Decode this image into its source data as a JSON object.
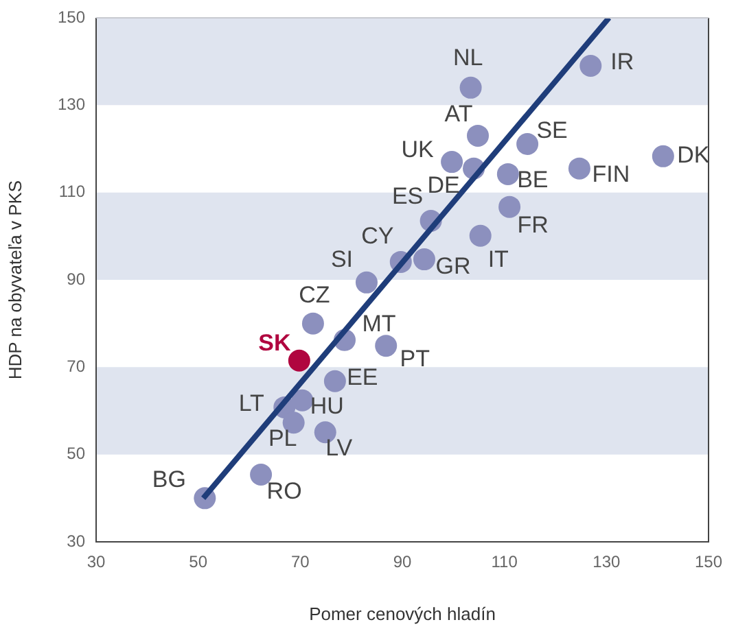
{
  "chart_data": {
    "type": "scatter",
    "xlabel": "Pomer cenových hladín",
    "ylabel": "HDP na obyvateľa v PKS",
    "xlim": [
      30,
      150
    ],
    "xticks": [
      30,
      50,
      70,
      90,
      110,
      130,
      150
    ],
    "ylim": [
      30,
      150
    ],
    "yticks": [
      30,
      50,
      70,
      90,
      110,
      130,
      150
    ],
    "grid": false,
    "legend": false,
    "marker": "circle",
    "bands": [
      {
        "axis": "y",
        "from": 50,
        "to": 70,
        "color": "#dfe4ef"
      },
      {
        "axis": "y",
        "from": 90,
        "to": 110,
        "color": "#dfe4ef"
      },
      {
        "axis": "y",
        "from": 130,
        "to": 150,
        "color": "#dfe4ef"
      }
    ],
    "series": [
      {
        "color": "#8c90be",
        "x": [
          51.3,
          62.3,
          66.9,
          70.4,
          68.7,
          74.9,
          76.8,
          69.8,
          72.5,
          78.7,
          86.8,
          83.0,
          89.7,
          94.3,
          95.6,
          105.3,
          111.0,
          110.7,
          104.0,
          99.7,
          104.8,
          114.5,
          103.4,
          126.9,
          124.7,
          141.1
        ],
        "values": [
          40.0,
          45.4,
          60.8,
          62.4,
          57.3,
          55.1,
          66.8,
          71.5,
          80.0,
          76.2,
          74.9,
          89.4,
          94.1,
          94.7,
          103.5,
          100.1,
          106.7,
          114.2,
          115.5,
          117.0,
          123.0,
          121.1,
          134.0,
          139.0,
          115.5,
          118.3
        ],
        "colors": [
          "#8c90be",
          "#8c90be",
          "#8c90be",
          "#8c90be",
          "#8c90be",
          "#8c90be",
          "#8c90be",
          "#b0053f",
          "#8c90be",
          "#8c90be",
          "#8c90be",
          "#8c90be",
          "#8c90be",
          "#8c90be",
          "#8c90be",
          "#8c90be",
          "#8c90be",
          "#8c90be",
          "#8c90be",
          "#8c90be",
          "#8c90be",
          "#8c90be",
          "#8c90be",
          "#8c90be",
          "#8c90be",
          "#8c90be"
        ]
      },
      {
        "type": "line",
        "marker": "none",
        "color": "#1f3d7a",
        "x": [
          51,
          130.5
        ],
        "values": [
          40,
          150
        ]
      }
    ],
    "annotations": [
      {
        "text": "BG",
        "x": 51.3,
        "y": 40.0
      },
      {
        "text": "RO",
        "x": 62.3,
        "y": 45.4
      },
      {
        "text": "LT",
        "x": 66.9,
        "y": 60.8
      },
      {
        "text": "HU",
        "x": 70.4,
        "y": 62.4
      },
      {
        "text": "PL",
        "x": 68.7,
        "y": 57.3
      },
      {
        "text": "LV",
        "x": 74.9,
        "y": 55.1
      },
      {
        "text": "EE",
        "x": 76.8,
        "y": 66.8
      },
      {
        "text": "SK",
        "x": 69.8,
        "y": 71.5
      },
      {
        "text": "CZ",
        "x": 72.5,
        "y": 80.0
      },
      {
        "text": "MT",
        "x": 78.7,
        "y": 76.2
      },
      {
        "text": "PT",
        "x": 86.8,
        "y": 74.9
      },
      {
        "text": "SI",
        "x": 83.0,
        "y": 89.4
      },
      {
        "text": "CY",
        "x": 89.7,
        "y": 94.1
      },
      {
        "text": "GR",
        "x": 94.3,
        "y": 94.7
      },
      {
        "text": "ES",
        "x": 95.6,
        "y": 103.5
      },
      {
        "text": "IT",
        "x": 105.3,
        "y": 100.1
      },
      {
        "text": "FR",
        "x": 111.0,
        "y": 106.7
      },
      {
        "text": "BE",
        "x": 110.7,
        "y": 114.2
      },
      {
        "text": "DE",
        "x": 104.0,
        "y": 115.5
      },
      {
        "text": "UK",
        "x": 99.7,
        "y": 117.0
      },
      {
        "text": "AT",
        "x": 104.8,
        "y": 123.0
      },
      {
        "text": "SE",
        "x": 114.5,
        "y": 121.1
      },
      {
        "text": "NL",
        "x": 103.4,
        "y": 134.0
      },
      {
        "text": "IR",
        "x": 126.9,
        "y": 139.0
      },
      {
        "text": "FIN",
        "x": 124.7,
        "y": 115.5
      },
      {
        "text": "DK",
        "x": 141.1,
        "y": 118.3
      }
    ]
  }
}
